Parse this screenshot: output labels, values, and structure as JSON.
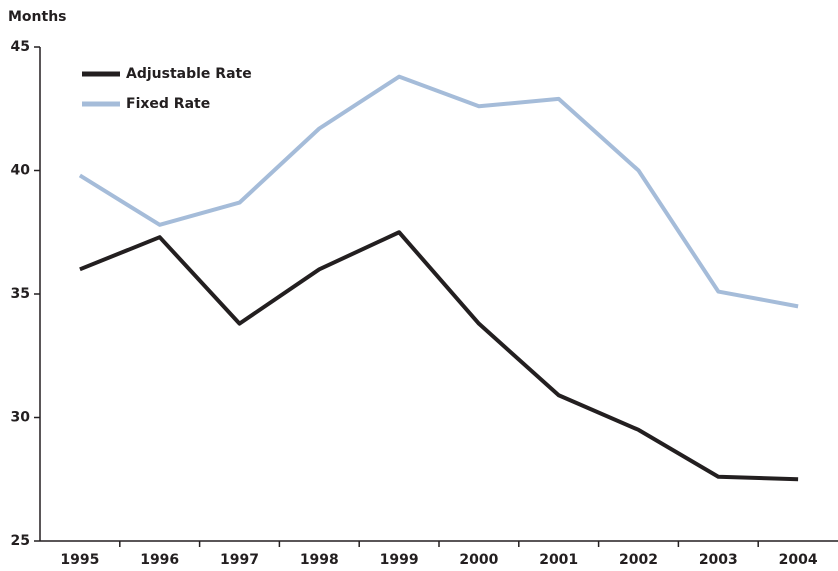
{
  "chart_data": {
    "type": "line",
    "y_label": "Months",
    "categories": [
      "1995",
      "1996",
      "1997",
      "1998",
      "1999",
      "2000",
      "2001",
      "2002",
      "2003",
      "2004"
    ],
    "series": [
      {
        "name": "Adjustable Rate",
        "color": "#231f20",
        "values": [
          36.0,
          37.3,
          33.8,
          36.0,
          37.5,
          33.8,
          30.9,
          29.5,
          27.6,
          27.5
        ]
      },
      {
        "name": "Fixed Rate",
        "color": "#a5bcd9",
        "values": [
          39.8,
          37.8,
          38.7,
          41.7,
          43.8,
          42.6,
          42.9,
          40.0,
          35.1,
          34.5
        ]
      }
    ],
    "ylim": [
      25,
      45
    ],
    "yticks": [
      25,
      30,
      35,
      40,
      45
    ],
    "legend": "upper left"
  }
}
